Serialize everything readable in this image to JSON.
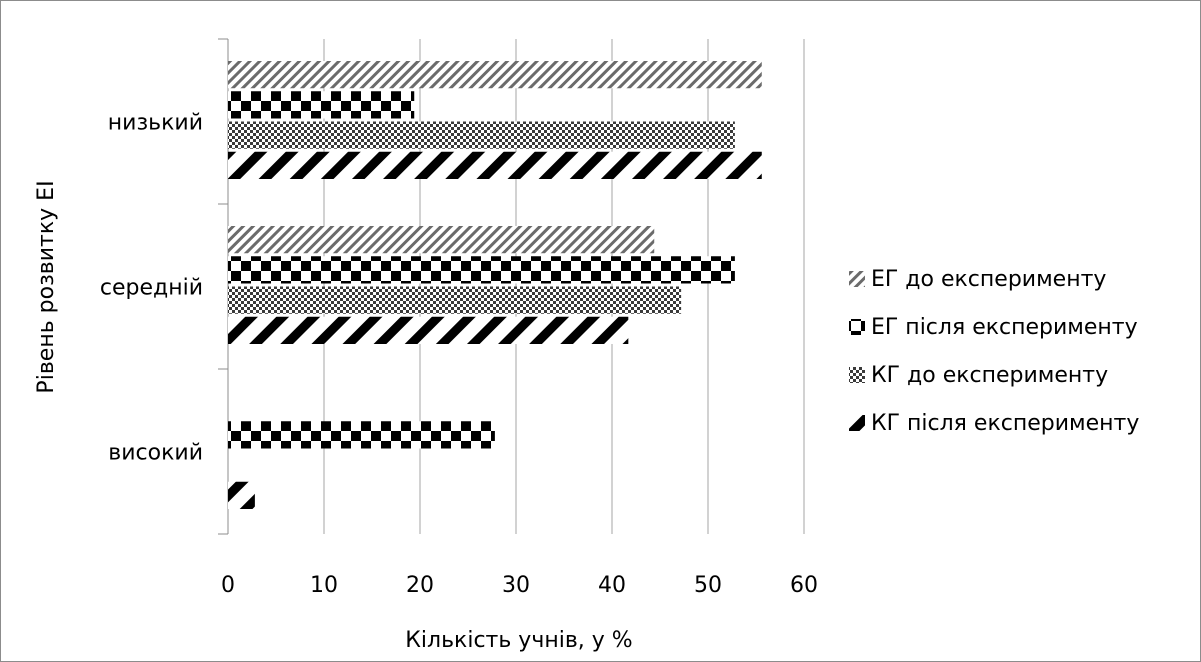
{
  "chart_data": {
    "type": "bar",
    "orientation": "horizontal",
    "title": "",
    "xlabel": "Кількість учнів, у %",
    "ylabel": "Рівень розвитку ЕІ",
    "xlim": [
      0,
      60
    ],
    "xticks": [
      "0",
      "10",
      "20",
      "30",
      "40",
      "50",
      "60"
    ],
    "grid": "vertical",
    "legend_position": "right",
    "categories": [
      "низький",
      "середній",
      "високий"
    ],
    "series": [
      {
        "name": "ЕГ до експерименту",
        "pattern": "diagonal-hatch",
        "values": [
          55.6,
          44.4,
          0
        ]
      },
      {
        "name": "ЕГ після експерименту",
        "pattern": "checker-large",
        "values": [
          19.4,
          52.8,
          27.8
        ]
      },
      {
        "name": "КГ до експерименту",
        "pattern": "checker-small",
        "values": [
          52.8,
          47.2,
          0
        ]
      },
      {
        "name": "КГ після експерименту",
        "pattern": "diagonal-wide",
        "values": [
          55.6,
          41.7,
          2.8
        ]
      }
    ]
  }
}
